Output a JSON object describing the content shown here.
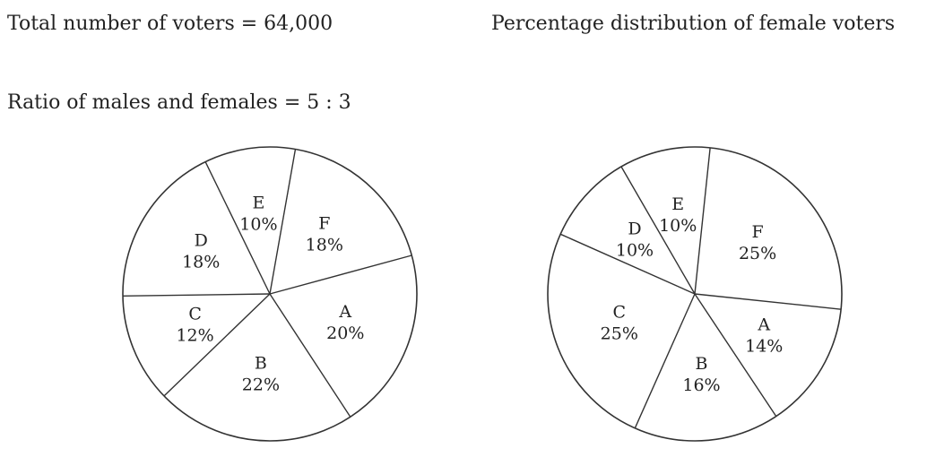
{
  "headers": {
    "total": "Total number of voters = 64,000",
    "ratio": "Ratio of males and females = 5 : 3",
    "female_title": "Percentage distribution of female voters"
  },
  "chart_data": [
    {
      "type": "pie",
      "title": "",
      "start_angle_deg": -80,
      "slices": [
        {
          "label": "F",
          "value": 18,
          "value_label": "18%"
        },
        {
          "label": "A",
          "value": 20,
          "value_label": "20%"
        },
        {
          "label": "B",
          "value": 22,
          "value_label": "22%"
        },
        {
          "label": "C",
          "value": 12,
          "value_label": "12%"
        },
        {
          "label": "D",
          "value": 18,
          "value_label": "18%"
        },
        {
          "label": "E",
          "value": 10,
          "value_label": "10%"
        }
      ]
    },
    {
      "type": "pie",
      "title": "Percentage distribution of female voters",
      "start_angle_deg": -84,
      "slices": [
        {
          "label": "F",
          "value": 25,
          "value_label": "25%"
        },
        {
          "label": "A",
          "value": 14,
          "value_label": "14%"
        },
        {
          "label": "B",
          "value": 16,
          "value_label": "16%"
        },
        {
          "label": "C",
          "value": 25,
          "value_label": "25%"
        },
        {
          "label": "D",
          "value": 10,
          "value_label": "10%"
        },
        {
          "label": "E",
          "value": 10,
          "value_label": "10%"
        }
      ]
    }
  ]
}
